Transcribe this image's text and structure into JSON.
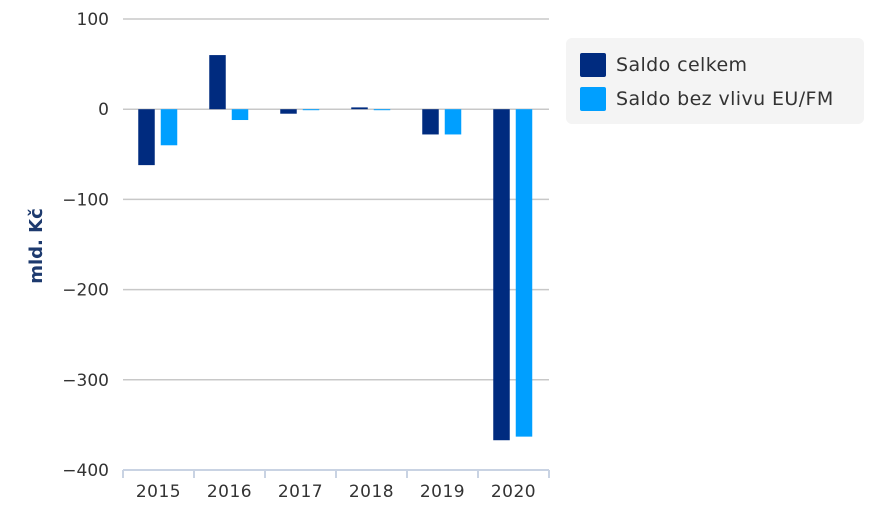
{
  "chart_data": {
    "type": "bar",
    "categories": [
      "2015",
      "2016",
      "2017",
      "2018",
      "2019",
      "2020"
    ],
    "series": [
      {
        "name": "Saldo celkem",
        "color": "#002b7f",
        "values": [
          -62,
          60,
          -5,
          2,
          -28,
          -367
        ]
      },
      {
        "name": "Saldo bez vlivu EU/FM",
        "color": "#009fff",
        "values": [
          -40,
          -12,
          -1,
          -1,
          -28,
          -363
        ]
      }
    ],
    "ylabel": "mld. Kč",
    "ylim": [
      -400,
      100
    ],
    "yticks": [
      100,
      0,
      -100,
      -200,
      -300,
      -400
    ],
    "ytick_labels": [
      "100",
      "0",
      "−100",
      "−200",
      "−300",
      "−400"
    ],
    "grid": true,
    "legend": "top-right"
  }
}
